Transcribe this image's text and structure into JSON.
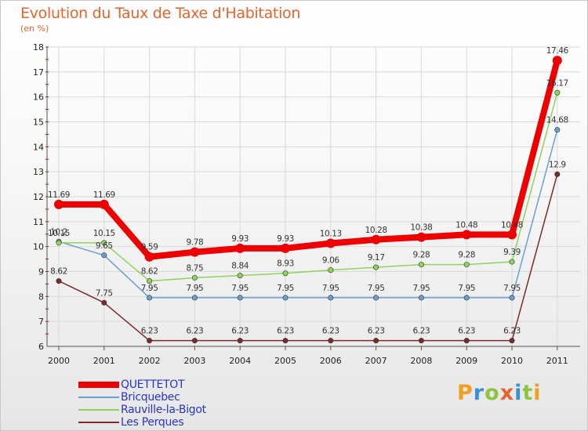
{
  "header": {
    "title": "Evolution du Taux de Taxe d'Habitation",
    "subtitle": "(en %)"
  },
  "brand": {
    "letters": [
      {
        "ch": "P",
        "color": "#f0a020"
      },
      {
        "ch": "r",
        "color": "#3a8fd8"
      },
      {
        "ch": "o",
        "color": "#8cc63f"
      },
      {
        "ch": "x",
        "color": "#e8622a"
      },
      {
        "ch": "i",
        "color": "#3a8fd8"
      },
      {
        "ch": "t",
        "color": "#8cc63f"
      },
      {
        "ch": "i",
        "color": "#f0a020"
      }
    ]
  },
  "chart_data": {
    "type": "line",
    "title": "Evolution du Taux de Taxe d'Habitation",
    "subtitle": "(en %)",
    "x": [
      "2000",
      "2001",
      "2002",
      "2003",
      "2004",
      "2005",
      "2006",
      "2007",
      "2008",
      "2009",
      "2010",
      "2011"
    ],
    "ylim": [
      6,
      18
    ],
    "yticks": [
      "6",
      "7",
      "8",
      "9",
      "10",
      "11",
      "12",
      "13",
      "14",
      "15",
      "16",
      "17",
      "18"
    ],
    "grid": true,
    "legend_position": "bottom-left",
    "series": [
      {
        "name": "QUETTETOT",
        "color": "#ee0000",
        "thick": true,
        "values": [
          11.69,
          11.69,
          9.59,
          9.78,
          9.93,
          9.93,
          10.13,
          10.28,
          10.38,
          10.48,
          10.48,
          17.46
        ],
        "labels": [
          "11.69",
          "11.69",
          "9.59",
          "9.78",
          "9.93",
          "9.93",
          "10.13",
          "10.28",
          "10.38",
          "10.48",
          "10.48",
          "17.46"
        ]
      },
      {
        "name": "Bricquebec",
        "color": "#6a9fd0",
        "thick": false,
        "values": [
          10.2,
          9.65,
          7.95,
          7.95,
          7.95,
          7.95,
          7.95,
          7.95,
          7.95,
          7.95,
          7.95,
          14.68
        ],
        "labels": [
          "10.2",
          "9.65",
          "7.95",
          "7.95",
          "7.95",
          "7.95",
          "7.95",
          "7.95",
          "7.95",
          "7.95",
          "7.95",
          "14.68"
        ]
      },
      {
        "name": "Rauville-la-Bigot",
        "color": "#8ed45a",
        "thick": false,
        "values": [
          10.15,
          10.15,
          8.62,
          8.75,
          8.84,
          8.93,
          9.06,
          9.17,
          9.28,
          9.28,
          9.39,
          16.17
        ],
        "labels": [
          "10.15",
          "10.15",
          "8.62",
          "8.75",
          "8.84",
          "8.93",
          "9.06",
          "9.17",
          "9.28",
          "9.28",
          "9.39",
          "16.17"
        ]
      },
      {
        "name": "Les Perques",
        "color": "#7a2a2a",
        "thick": false,
        "values": [
          8.62,
          7.75,
          6.23,
          6.23,
          6.23,
          6.23,
          6.23,
          6.23,
          6.23,
          6.23,
          6.23,
          12.9
        ],
        "labels": [
          "8.62",
          "7.75",
          "6.23",
          "6.23",
          "6.23",
          "6.23",
          "6.23",
          "6.23",
          "6.23",
          "6.23",
          "6.23",
          "12.9"
        ]
      }
    ]
  }
}
